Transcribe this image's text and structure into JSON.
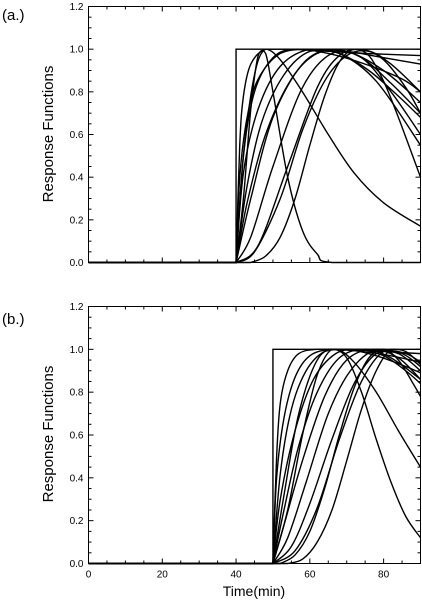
{
  "chart_data": [
    {
      "type": "line",
      "panel_label": "(a.)",
      "ylabel": "Response Functions",
      "xlabel": "",
      "xlim": [
        0,
        90
      ],
      "ylim": [
        0,
        1.2
      ],
      "xticks": [
        0,
        20,
        40,
        60,
        80
      ],
      "xtick_labels_shown": false,
      "yticks": [
        0.0,
        0.2,
        0.4,
        0.6,
        0.8,
        1.0,
        1.2
      ],
      "ytick_labels": [
        "0.0",
        "0.2",
        "0.4",
        "0.6",
        "0.8",
        "1.0",
        "1.2"
      ],
      "onset": 40,
      "series": [
        {
          "x": [
            0,
            40,
            40,
            90
          ],
          "y": [
            0,
            0,
            1,
            1
          ]
        },
        {
          "x": [
            0,
            40,
            41,
            42,
            44,
            48,
            55,
            65,
            75,
            90
          ],
          "y": [
            0,
            0,
            0.55,
            0.78,
            0.93,
            1.0,
            1.0,
            0.99,
            0.98,
            0.97
          ]
        },
        {
          "x": [
            0,
            40,
            41,
            43,
            46,
            52,
            60,
            70,
            80,
            90
          ],
          "y": [
            0,
            0,
            0.4,
            0.68,
            0.86,
            0.98,
            1.0,
            0.99,
            0.96,
            0.93
          ]
        },
        {
          "x": [
            0,
            40,
            42,
            45,
            50,
            56,
            65,
            75,
            85,
            90
          ],
          "y": [
            0,
            0,
            0.5,
            0.8,
            0.96,
            1.0,
            0.98,
            0.93,
            0.86,
            0.8
          ]
        },
        {
          "x": [
            0,
            40,
            42,
            46,
            52,
            60,
            68,
            76,
            84,
            90
          ],
          "y": [
            0,
            0,
            0.42,
            0.72,
            0.92,
            1.0,
            0.98,
            0.9,
            0.78,
            0.68
          ]
        },
        {
          "x": [
            0,
            40,
            43,
            47,
            53,
            60,
            68,
            78,
            90
          ],
          "y": [
            0,
            0,
            0.36,
            0.66,
            0.88,
            0.99,
            0.98,
            0.85,
            0.55
          ]
        },
        {
          "x": [
            0,
            40,
            43,
            48,
            55,
            62,
            70,
            80,
            90
          ],
          "y": [
            0,
            0,
            0.28,
            0.6,
            0.86,
            0.98,
            0.99,
            0.9,
            0.75
          ]
        },
        {
          "x": [
            0,
            40,
            44,
            50,
            58,
            66,
            74,
            82,
            90
          ],
          "y": [
            0,
            0,
            0.3,
            0.68,
            0.93,
            1.0,
            0.96,
            0.84,
            0.7
          ]
        },
        {
          "x": [
            0,
            40,
            42,
            45,
            48,
            52,
            58,
            65,
            72,
            80,
            90
          ],
          "y": [
            0,
            0,
            0.5,
            0.88,
            1.0,
            0.95,
            0.8,
            0.6,
            0.42,
            0.28,
            0.17
          ]
        },
        {
          "x": [
            0,
            40,
            42,
            44,
            46,
            48,
            50,
            54,
            58,
            62,
            66,
            90
          ],
          "y": [
            0,
            0,
            0.3,
            0.72,
            0.97,
            0.98,
            0.8,
            0.4,
            0.15,
            0.04,
            0.0,
            0.0
          ]
        },
        {
          "x": [
            0,
            40,
            44,
            50,
            58,
            66,
            74,
            82,
            90
          ],
          "y": [
            0,
            0,
            0.12,
            0.45,
            0.82,
            0.98,
            0.96,
            0.8,
            0.6
          ]
        },
        {
          "x": [
            0,
            40,
            45,
            52,
            58,
            64,
            70,
            76,
            82,
            90
          ],
          "y": [
            0,
            0,
            0.05,
            0.3,
            0.62,
            0.85,
            0.97,
            0.99,
            0.93,
            0.8
          ]
        },
        {
          "x": [
            0,
            40,
            46,
            54,
            62,
            68,
            74,
            80,
            86,
            90
          ],
          "y": [
            0,
            0,
            0.08,
            0.45,
            0.82,
            0.97,
            1.0,
            0.95,
            0.82,
            0.7
          ]
        },
        {
          "x": [
            0,
            44,
            48,
            52,
            56,
            60,
            64,
            68,
            72,
            76,
            80,
            84,
            90
          ],
          "y": [
            0,
            0,
            0.03,
            0.12,
            0.3,
            0.55,
            0.78,
            0.94,
            1.0,
            0.97,
            0.85,
            0.68,
            0.4
          ]
        }
      ]
    },
    {
      "type": "line",
      "panel_label": "(b.)",
      "ylabel": "Response Functions",
      "xlabel": "Time(min)",
      "xlim": [
        0,
        90
      ],
      "ylim": [
        0,
        1.2
      ],
      "xticks": [
        0,
        20,
        40,
        60,
        80
      ],
      "xtick_labels": [
        "0",
        "20",
        "40",
        "60",
        "80"
      ],
      "xtick_labels_shown": true,
      "yticks": [
        0.0,
        0.2,
        0.4,
        0.6,
        0.8,
        1.0,
        1.2
      ],
      "ytick_labels": [
        "0.0",
        "0.2",
        "0.4",
        "0.6",
        "0.8",
        "1.0",
        "1.2"
      ],
      "onset": 50,
      "series": [
        {
          "x": [
            0,
            50,
            50,
            90
          ],
          "y": [
            0,
            0,
            1,
            1
          ]
        },
        {
          "x": [
            0,
            50,
            51,
            52,
            54,
            57,
            62,
            70,
            80,
            90
          ],
          "y": [
            0,
            0,
            0.5,
            0.75,
            0.9,
            0.98,
            1.0,
            1.0,
            0.99,
            0.98
          ]
        },
        {
          "x": [
            0,
            50,
            51,
            53,
            56,
            60,
            66,
            74,
            82,
            90
          ],
          "y": [
            0,
            0,
            0.4,
            0.68,
            0.87,
            0.97,
            1.0,
            0.99,
            0.97,
            0.94
          ]
        },
        {
          "x": [
            0,
            50,
            52,
            55,
            59,
            64,
            70,
            78,
            86,
            90
          ],
          "y": [
            0,
            0,
            0.42,
            0.72,
            0.9,
            0.99,
            1.0,
            0.97,
            0.92,
            0.89
          ]
        },
        {
          "x": [
            0,
            50,
            52,
            56,
            61,
            67,
            73,
            80,
            86,
            90
          ],
          "y": [
            0,
            0,
            0.3,
            0.62,
            0.86,
            0.98,
            1.0,
            0.97,
            0.9,
            0.84
          ]
        },
        {
          "x": [
            0,
            50,
            53,
            57,
            62,
            68,
            75,
            82,
            90
          ],
          "y": [
            0,
            0,
            0.25,
            0.55,
            0.8,
            0.96,
            1.0,
            0.96,
            0.86
          ]
        },
        {
          "x": [
            0,
            50,
            53,
            58,
            64,
            70,
            77,
            84,
            90
          ],
          "y": [
            0,
            0,
            0.18,
            0.48,
            0.78,
            0.95,
            1.0,
            0.96,
            0.86
          ]
        },
        {
          "x": [
            0,
            50,
            54,
            59,
            65,
            71,
            78,
            85,
            90
          ],
          "y": [
            0,
            0,
            0.12,
            0.38,
            0.7,
            0.9,
            1.0,
            0.98,
            0.92
          ]
        },
        {
          "x": [
            0,
            50,
            55,
            60,
            66,
            72,
            78,
            84,
            90
          ],
          "y": [
            0,
            0,
            0.08,
            0.28,
            0.58,
            0.84,
            0.98,
            0.98,
            0.9
          ]
        },
        {
          "x": [
            0,
            50,
            56,
            62,
            68,
            74,
            80,
            86,
            90
          ],
          "y": [
            0,
            0,
            0.06,
            0.26,
            0.58,
            0.85,
            0.99,
            0.98,
            0.94
          ]
        },
        {
          "x": [
            0,
            50,
            53,
            57,
            62,
            67,
            72,
            78,
            84,
            90
          ],
          "y": [
            0,
            0,
            0.32,
            0.7,
            0.95,
            1.0,
            0.94,
            0.8,
            0.62,
            0.45
          ]
        },
        {
          "x": [
            0,
            50,
            54,
            58,
            62,
            66,
            70,
            74,
            78,
            82,
            86,
            90
          ],
          "y": [
            0,
            0,
            0.25,
            0.6,
            0.88,
            1.0,
            0.96,
            0.8,
            0.58,
            0.38,
            0.22,
            0.12
          ]
        },
        {
          "x": [
            0,
            52,
            56,
            60,
            64,
            68,
            72,
            76,
            80,
            84,
            88,
            90
          ],
          "y": [
            0,
            0,
            0.04,
            0.15,
            0.35,
            0.6,
            0.82,
            0.96,
            1.0,
            0.95,
            0.84,
            0.78
          ]
        },
        {
          "x": [
            0,
            54,
            58,
            62,
            66,
            70,
            74,
            78,
            82,
            86,
            90
          ],
          "y": [
            0,
            0,
            0.02,
            0.1,
            0.25,
            0.48,
            0.72,
            0.9,
            1.0,
            0.99,
            0.93
          ]
        }
      ]
    }
  ]
}
